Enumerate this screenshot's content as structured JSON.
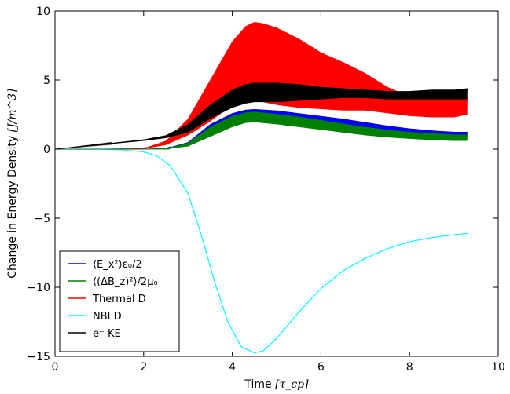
{
  "chart_data": {
    "type": "line",
    "title": "",
    "xlabel": "Time",
    "xlabel_unit": "[τ_cp]",
    "ylabel": "Change in Energy Density",
    "ylabel_unit": "[J/m^3]",
    "xlim": [
      0,
      10
    ],
    "ylim": [
      -15,
      10
    ],
    "xticks": [
      0,
      2,
      4,
      6,
      8,
      10
    ],
    "yticks": [
      -15,
      -10,
      -5,
      0,
      5,
      10
    ],
    "grid": false,
    "legend_position": "lower-left",
    "series": [
      {
        "name": "⟨E_x²⟩ε₀/2",
        "color": "#0000ff",
        "x": [
          0,
          1,
          2,
          2.5,
          3,
          3.5,
          4,
          4.3,
          4.5,
          5,
          5.5,
          6,
          6.5,
          7,
          7.5,
          8,
          8.5,
          9,
          9.3
        ],
        "low": [
          0,
          0,
          0,
          0.02,
          0.3,
          1.2,
          2.0,
          2.3,
          2.4,
          2.4,
          2.2,
          2.0,
          1.8,
          1.6,
          1.4,
          1.2,
          1.1,
          1.0,
          1.0
        ],
        "high": [
          0,
          0,
          0,
          0.05,
          0.5,
          1.8,
          2.6,
          2.85,
          2.9,
          2.8,
          2.6,
          2.4,
          2.2,
          1.95,
          1.7,
          1.5,
          1.35,
          1.25,
          1.25
        ]
      },
      {
        "name": "⟨(ΔB_z)²⟩/2μ₀",
        "color": "#008000",
        "x": [
          0,
          1,
          2,
          2.5,
          3,
          3.5,
          4,
          4.3,
          4.5,
          5,
          5.5,
          6,
          6.5,
          7,
          7.5,
          8,
          8.5,
          9,
          9.3
        ],
        "low": [
          0,
          0,
          0,
          0.01,
          0.2,
          0.9,
          1.6,
          1.9,
          1.95,
          1.8,
          1.6,
          1.4,
          1.2,
          1.0,
          0.85,
          0.75,
          0.65,
          0.6,
          0.6
        ],
        "high": [
          0,
          0,
          0,
          0.04,
          0.45,
          1.6,
          2.4,
          2.65,
          2.7,
          2.55,
          2.35,
          2.1,
          1.85,
          1.6,
          1.4,
          1.25,
          1.15,
          1.05,
          1.05
        ]
      },
      {
        "name": "Thermal D",
        "color": "#ff0000",
        "x": [
          0,
          1,
          2,
          2.5,
          3,
          3.5,
          4,
          4.3,
          4.5,
          4.7,
          5,
          5.5,
          6,
          6.5,
          7,
          7.5,
          8,
          8.5,
          9,
          9.3
        ],
        "low": [
          0,
          0,
          0.02,
          0.3,
          1.0,
          2.0,
          3.2,
          3.6,
          3.6,
          3.4,
          3.2,
          3.0,
          2.9,
          2.8,
          2.8,
          2.6,
          2.4,
          2.3,
          2.3,
          2.5
        ],
        "high": [
          0,
          0,
          0.05,
          0.6,
          2.2,
          5.0,
          7.8,
          8.9,
          9.2,
          9.1,
          8.8,
          8.0,
          7.0,
          6.3,
          5.5,
          4.5,
          3.8,
          3.7,
          3.7,
          3.8
        ]
      },
      {
        "name": "NBI D",
        "color": "#00ffff",
        "x": [
          0,
          1,
          1.5,
          2,
          2.3,
          2.6,
          3,
          3.3,
          3.6,
          3.9,
          4.2,
          4.5,
          4.7,
          5,
          5.5,
          6,
          6.5,
          7,
          7.5,
          8,
          8.5,
          9,
          9.3
        ],
        "y": [
          0,
          -0.01,
          -0.05,
          -0.2,
          -0.5,
          -1.2,
          -3.2,
          -6.2,
          -9.6,
          -12.5,
          -14.3,
          -14.75,
          -14.6,
          -13.7,
          -11.8,
          -10.1,
          -8.8,
          -7.9,
          -7.2,
          -6.7,
          -6.4,
          -6.2,
          -6.1
        ]
      },
      {
        "name": "e⁻ KE",
        "color": "#000000",
        "x": [
          0,
          1,
          2,
          2.5,
          3,
          3.5,
          4,
          4.3,
          4.5,
          5,
          5.5,
          6,
          6.5,
          7,
          7.5,
          8,
          8.5,
          9,
          9.3
        ],
        "low": [
          0,
          0.3,
          0.6,
          0.8,
          1.2,
          2.2,
          3.0,
          3.3,
          3.4,
          3.4,
          3.5,
          3.6,
          3.7,
          3.7,
          3.6,
          3.6,
          3.6,
          3.6,
          3.6
        ],
        "high": [
          0,
          0.35,
          0.7,
          1.0,
          1.8,
          3.2,
          4.3,
          4.7,
          4.8,
          4.8,
          4.7,
          4.5,
          4.4,
          4.3,
          4.2,
          4.2,
          4.3,
          4.3,
          4.4
        ]
      }
    ]
  }
}
